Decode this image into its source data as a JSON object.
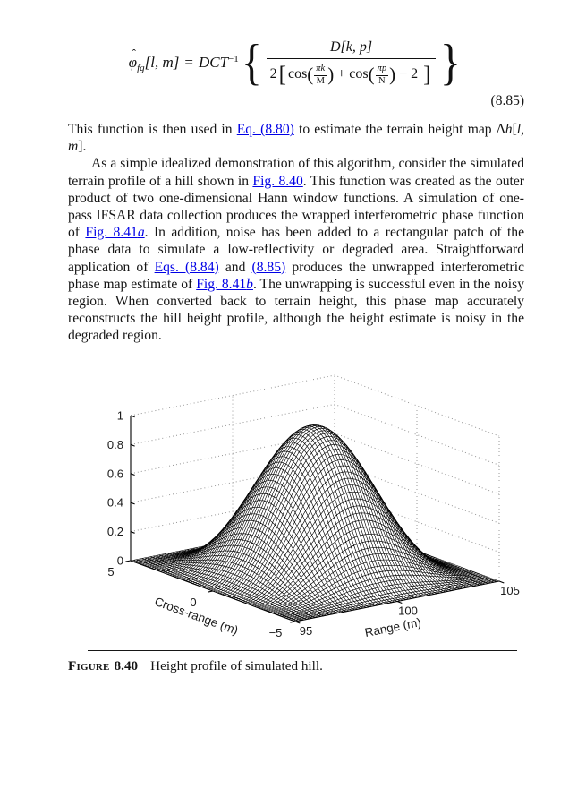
{
  "colors": {
    "link": "#0000e6",
    "text": "#151515",
    "mesh": "#000000",
    "face": "#ffffff",
    "grid": "#8a8a8a"
  },
  "equation": {
    "number": "(8.85)",
    "lhs_symbol": "φ",
    "lhs_hat": "ˆ",
    "lhs_sub": "fg",
    "lhs_args": "[l, m]",
    "equals": "=",
    "operator": "DCT",
    "operator_exp": "−1",
    "brace_open": "{",
    "brace_close": "}",
    "numerator": "D[k, p]",
    "den_prefix": "2",
    "den_lbracket": "[",
    "cos1": "cos",
    "paren_open1": "(",
    "frac1_num": "πk",
    "frac1_den": "M",
    "paren_close1": ")",
    "plus": "+",
    "cos2": "cos",
    "paren_open2": "(",
    "frac2_num": "πp",
    "frac2_den": "N",
    "paren_close2": ")",
    "den_suffix": "− 2",
    "den_rbracket": "]"
  },
  "paragraphs": {
    "p1": {
      "t1": "This function is then used in ",
      "link1": "Eq. (8.80)",
      "t2": " to estimate the terrain height map ",
      "sym_delta": "Δ",
      "sym_h": "h",
      "bracket_open": "[",
      "sym_lm": "l, m",
      "bracket_close": "]."
    },
    "p2": {
      "t1": "As a simple idealized demonstration of this algorithm, consider the simulated terrain profile of a hill shown in ",
      "link1": "Fig. 8.40",
      "t2": ". This function was created as the outer product of two one-dimensional Hann window functions. A simulation of one-pass IFSAR data collection produces the wrapped interferometric phase function of ",
      "link2": "Fig. 8.41",
      "link2_sfx": "a",
      "t3": ". In addition, noise has been added to a rectangular patch of the phase data to simulate a low-reflectivity or degraded area. Straightforward application of ",
      "link3": "Eqs. (8.84)",
      "t4": " and ",
      "link4": "(8.85)",
      "t5": " produces the unwrapped interferometric phase map estimate of ",
      "link5": "Fig. 8.41",
      "link5_sfx": "b",
      "t6": ". The unwrapping is successful even in the noisy region. When converted back to terrain height, this phase map accurately reconstructs the hill height profile, although the height estimate is noisy in the degraded region."
    }
  },
  "figure": {
    "caption_label": "Figure",
    "caption_number": "8.40",
    "caption_text": "Height profile of simulated hill."
  },
  "chart_data": {
    "type": "surface",
    "title": "",
    "description": "3-D wireframe mesh of a simulated hill: outer product of two one-dimensional Hann windows",
    "surface_function": "z(u,v) = hann(u)*hann(v), hann(t) = 0.5*(1 - cos(2*pi*t))",
    "x": {
      "label": "Range (m)",
      "min": 95,
      "max": 105,
      "ticks": [
        95,
        100,
        105
      ],
      "tick_labels": [
        "95",
        "100",
        "105"
      ]
    },
    "y": {
      "label": "Cross-range (m)",
      "min": -5,
      "max": 5,
      "ticks": [
        5,
        0,
        -5
      ],
      "tick_labels": [
        "5",
        "0",
        "−5"
      ]
    },
    "z": {
      "label": "",
      "min": 0,
      "max": 1,
      "ticks": [
        0,
        0.2,
        0.4,
        0.6,
        0.8,
        1
      ],
      "tick_labels": [
        "0",
        "0.2",
        "0.4",
        "0.6",
        "0.8",
        "1"
      ]
    },
    "peak": {
      "range": 100,
      "cross_range": 0,
      "height": 1
    },
    "grid_n": 72,
    "grid_style": "dotted",
    "legend": "none",
    "view": "matlab default 3-D (az ≈ -37.5°, el ≈ 30°)"
  }
}
